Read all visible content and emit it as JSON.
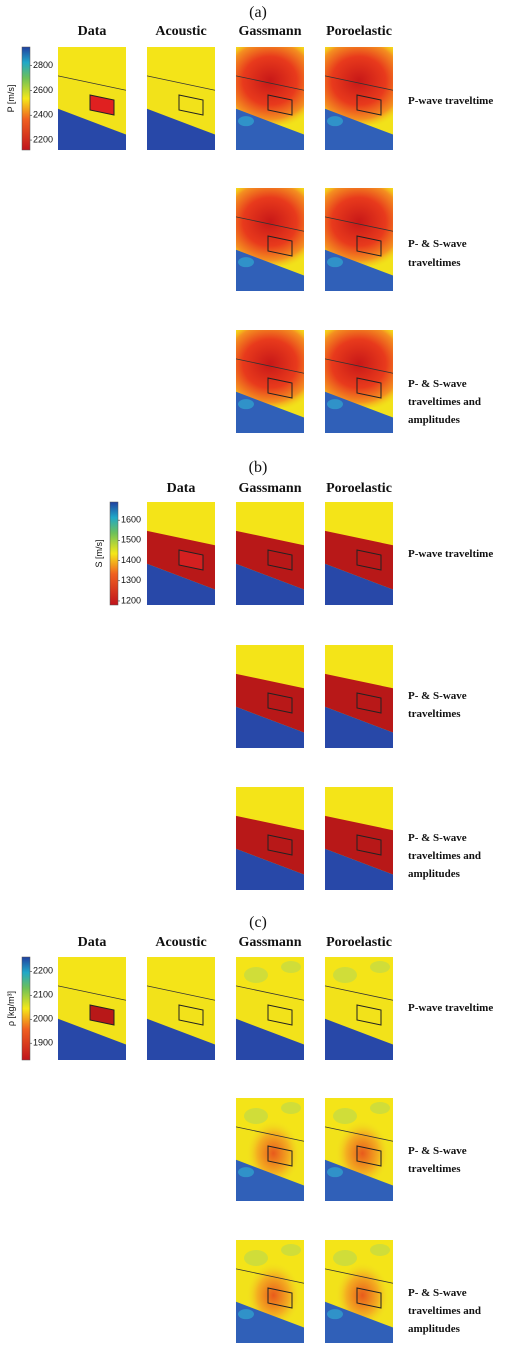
{
  "sections": [
    {
      "label": "(a)",
      "columns": [
        "Data",
        "Acoustic",
        "Gassmann",
        "Poroelastic"
      ],
      "colorbar": {
        "label": "P [m/s]",
        "ylim": [
          2120,
          2950
        ],
        "ticks": [
          2200,
          2400,
          2600,
          2800
        ]
      },
      "rows": [
        [
          "P-wave traveltime"
        ],
        [
          "P- & S-wave",
          "traveltimes"
        ],
        [
          "P- & S-wave",
          "traveltimes and",
          "amplitudes"
        ]
      ]
    },
    {
      "label": "(b)",
      "columns": [
        "Data",
        "Gassmann",
        "Poroelastic"
      ],
      "colorbar": {
        "label": "S [m/s]",
        "ylim": [
          1180,
          1690
        ],
        "ticks": [
          1200,
          1300,
          1400,
          1500,
          1600
        ]
      },
      "rows": [
        [
          "P-wave traveltime"
        ],
        [
          "P- & S-wave",
          "traveltimes"
        ],
        [
          "P- & S-wave",
          "traveltimes and",
          "amplitudes"
        ]
      ]
    },
    {
      "label": "(c)",
      "columns": [
        "Data",
        "Acoustic",
        "Gassmann",
        "Poroelastic"
      ],
      "colorbar": {
        "label": "ρ [kg/m³]",
        "ylim": [
          1830,
          2260
        ],
        "ticks": [
          1900,
          2000,
          2100,
          2200
        ]
      },
      "rows": [
        [
          "P-wave traveltime"
        ],
        [
          "P- & S-wave",
          "traveltimes"
        ],
        [
          "P- & S-wave",
          "traveltimes and",
          "amplitudes"
        ]
      ]
    }
  ]
}
